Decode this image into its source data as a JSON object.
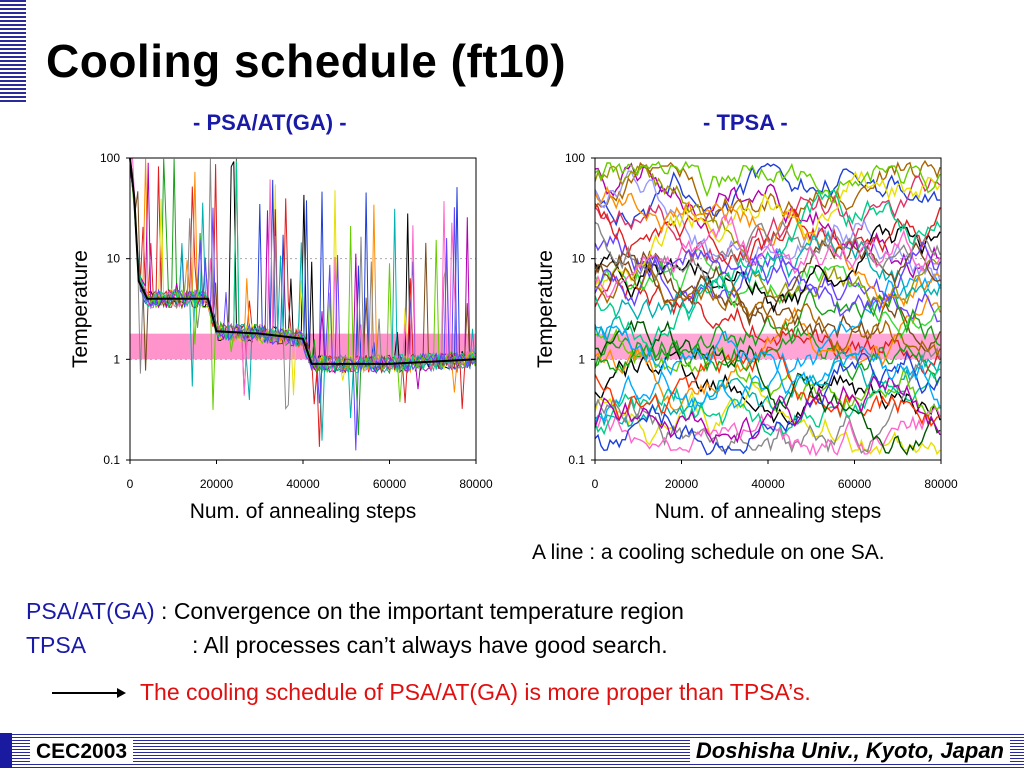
{
  "slide": {
    "title": "Cooling schedule (ft10)",
    "note": "A line : a cooling schedule on one SA.",
    "line1_key": "PSA/AT(GA)",
    "line1_text": " : Convergence on the important temperature region",
    "line2_key": "TPSA",
    "line2_text": ": All processes can’t always have good search.",
    "conclusion": "The cooling schedule of PSA/AT(GA) is more proper than TPSA’s.",
    "footer_left": "CEC2003",
    "footer_right": "Doshisha Univ., Kyoto, Japan",
    "colors": {
      "title_blue": "#1a1aa8",
      "conclusion_red": "#e01010",
      "band_pink": "#ff88c8"
    }
  },
  "chart_data": [
    {
      "type": "line",
      "title": "- PSA/AT(GA) -",
      "xlabel": "Num. of annealing steps",
      "ylabel": "Temperature",
      "xlim": [
        0,
        80000
      ],
      "ylim": [
        0.1,
        100
      ],
      "yscale": "log",
      "xticks": [
        "0",
        "20000",
        "40000",
        "60000",
        "80000"
      ],
      "yticks": [
        "0.1",
        "1",
        "10",
        "100"
      ],
      "grid": "dotted horizontal",
      "highlight_band": [
        1,
        1.8
      ],
      "series": [
        {
          "x": [
            0,
            1000,
            2000,
            4000,
            10000,
            17000,
            18000,
            20000,
            30000,
            40000,
            42000,
            50000,
            60000,
            70000,
            80000
          ],
          "values": [
            100,
            40,
            6,
            4,
            4,
            4,
            4,
            1.9,
            1.8,
            1.6,
            0.9,
            0.9,
            0.9,
            0.95,
            1.0
          ]
        }
      ]
    },
    {
      "type": "line",
      "title": "- TPSA -",
      "xlabel": "Num. of annealing steps",
      "ylabel": "Temperature",
      "xlim": [
        0,
        80000
      ],
      "ylim": [
        0.1,
        100
      ],
      "yscale": "log",
      "xticks": [
        "0",
        "20000",
        "40000",
        "60000",
        "80000"
      ],
      "yticks": [
        "0.1",
        "1",
        "10",
        "100"
      ],
      "grid": "dotted horizontal",
      "highlight_band": [
        1,
        1.8
      ]
    }
  ]
}
